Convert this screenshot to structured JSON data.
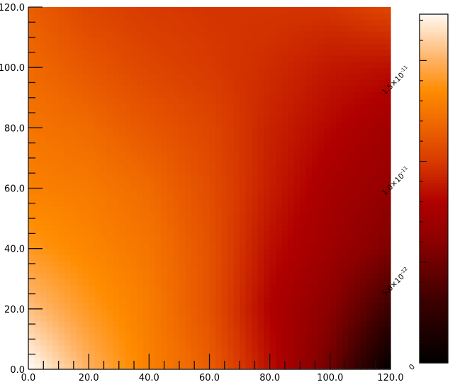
{
  "chart_data": {
    "type": "heatmap",
    "title": "",
    "xlabel": "",
    "ylabel": "",
    "xlim": [
      0,
      120
    ],
    "ylim": [
      0,
      120
    ],
    "x_ticks": [
      "0.0",
      "20.0",
      "40.0",
      "60.0",
      "80.0",
      "100.0",
      "120.0"
    ],
    "y_ticks": [
      "0.0",
      "20.0",
      "40.0",
      "60.0",
      "80.0",
      "100.0",
      "120.0"
    ],
    "grid_x": [
      0,
      20,
      40,
      60,
      80,
      100,
      120
    ],
    "grid_y": [
      0,
      20,
      40,
      60,
      80,
      100,
      120
    ],
    "value_unit_exponent": -11,
    "values": [
      [
        1.75,
        1.5,
        1.3,
        1.15,
        0.85,
        0.5,
        0.0
      ],
      [
        1.55,
        1.4,
        1.28,
        1.1,
        0.8,
        0.6,
        0.3
      ],
      [
        1.4,
        1.32,
        1.25,
        1.1,
        0.85,
        0.7,
        0.55
      ],
      [
        1.3,
        1.27,
        1.2,
        1.08,
        0.9,
        0.75,
        0.65
      ],
      [
        1.25,
        1.2,
        1.12,
        1.05,
        0.92,
        0.82,
        0.72
      ],
      [
        1.2,
        1.12,
        1.05,
        1.0,
        0.95,
        0.88,
        0.85
      ],
      [
        1.15,
        1.05,
        1.0,
        0.98,
        0.98,
        0.98,
        1.05
      ]
    ],
    "colorbar": {
      "range": [
        0,
        1.73e-11
      ],
      "ticks": [
        {
          "value": 0,
          "mantissa": "0",
          "exponent": ""
        },
        {
          "value": 5e-12,
          "mantissa": "5.0×10",
          "exponent": "-12"
        },
        {
          "value": 1e-11,
          "mantissa": "1.0×10",
          "exponent": "-11"
        },
        {
          "value": 1.5e-11,
          "mantissa": "1.5×10",
          "exponent": "-11"
        }
      ],
      "colormap": [
        {
          "v": 0.0,
          "color": "#000000"
        },
        {
          "v": 0.3,
          "color": "#3a0000"
        },
        {
          "v": 0.6,
          "color": "#8b0000"
        },
        {
          "v": 0.8,
          "color": "#b00000"
        },
        {
          "v": 1.0,
          "color": "#d83a00"
        },
        {
          "v": 1.2,
          "color": "#f06a00"
        },
        {
          "v": 1.35,
          "color": "#ff8c00"
        },
        {
          "v": 1.5,
          "color": "#ffb060"
        },
        {
          "v": 1.75,
          "color": "#ffffff"
        }
      ]
    },
    "grid": false,
    "legend": "colorbar-right"
  }
}
